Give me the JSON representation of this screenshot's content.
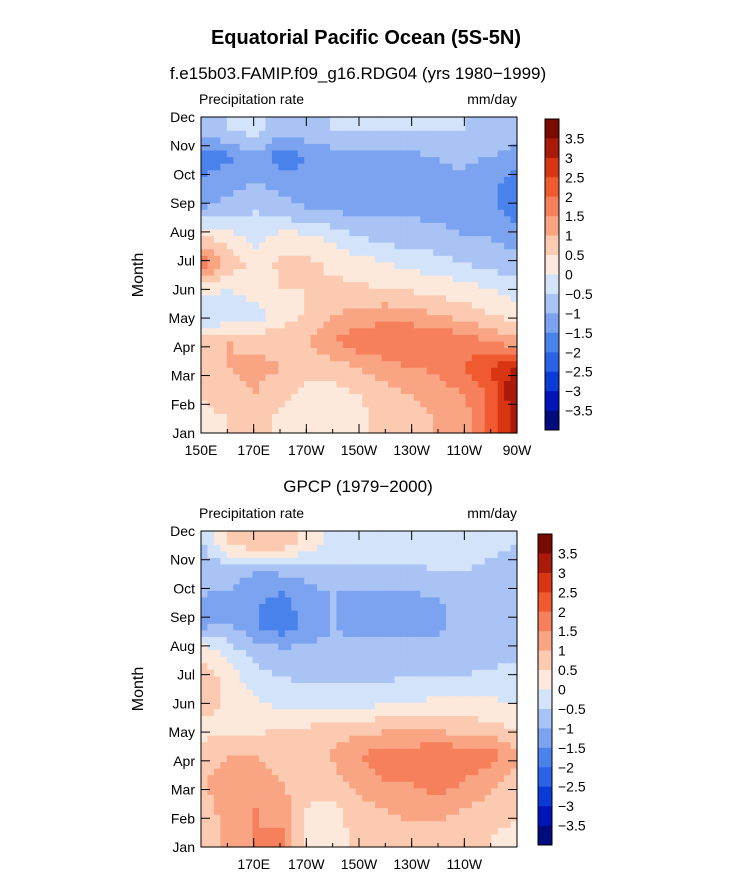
{
  "figure": {
    "title": "Equatorial Pacific Ocean (5S-5N)"
  },
  "chart_data": [
    {
      "type": "heatmap",
      "title": "f.e15b03.FAMIP.f09_g16.RDG04 (yrs 1980−1999)",
      "left_label": "Precipitation rate",
      "right_label": "mm/day",
      "ylabel": "Month",
      "x_ticks": [
        "150E",
        "170E",
        "170W",
        "150W",
        "130W",
        "110W",
        "90W"
      ],
      "y_ticks": [
        "Jan",
        "Feb",
        "Mar",
        "Apr",
        "May",
        "Jun",
        "Jul",
        "Aug",
        "Sep",
        "Oct",
        "Nov",
        "Dec"
      ],
      "x_range": [
        150,
        270
      ],
      "colorbar_labels": [
        "3.5",
        "3",
        "2.5",
        "2",
        "1.5",
        "1",
        "0.5",
        "0",
        "−0.5",
        "−1",
        "−1.5",
        "−2",
        "−2.5",
        "−3",
        "−3.5"
      ],
      "grid_values": [
        [
          0.3,
          0.5,
          0.6,
          0.4,
          0.3,
          0.2,
          0.4,
          0.6,
          0.8,
          1.0,
          1.2,
          2.0,
          3.0
        ],
        [
          0.6,
          0.8,
          1.0,
          0.6,
          0.3,
          0.3,
          0.5,
          0.8,
          1.0,
          1.2,
          1.5,
          2.0,
          3.5
        ],
        [
          0.8,
          1.0,
          1.2,
          1.0,
          0.8,
          0.7,
          1.0,
          1.3,
          1.5,
          1.6,
          2.0,
          2.5,
          3.0
        ],
        [
          0.8,
          1.0,
          0.8,
          0.8,
          1.0,
          1.5,
          1.8,
          2.0,
          2.0,
          2.0,
          1.8,
          1.5,
          1.2
        ],
        [
          -0.6,
          -0.5,
          -0.3,
          0.3,
          0.5,
          1.0,
          1.2,
          1.3,
          1.2,
          1.0,
          0.8,
          0.5,
          0.3
        ],
        [
          0.2,
          0.0,
          0.3,
          0.5,
          0.5,
          0.6,
          0.6,
          0.5,
          0.4,
          0.3,
          0.2,
          0.0,
          -0.2
        ],
        [
          1.8,
          0.8,
          0.3,
          0.6,
          0.6,
          0.4,
          0.2,
          0.0,
          -0.2,
          -0.3,
          -0.5,
          -0.7,
          -0.8
        ],
        [
          0.5,
          0.2,
          -0.3,
          0.2,
          0.1,
          -0.2,
          -0.5,
          -0.7,
          -0.8,
          -0.9,
          -1.0,
          -1.0,
          -1.2
        ],
        [
          -1.0,
          -0.8,
          -0.5,
          -0.8,
          -1.0,
          -1.1,
          -1.1,
          -1.1,
          -1.1,
          -1.1,
          -1.1,
          -1.2,
          -1.8
        ],
        [
          -1.4,
          -1.2,
          -1.0,
          -1.2,
          -1.3,
          -1.2,
          -1.2,
          -1.1,
          -1.1,
          -1.1,
          -1.1,
          -1.3,
          -1.8
        ],
        [
          -1.8,
          -1.6,
          -1.1,
          -1.9,
          -1.5,
          -1.3,
          -1.2,
          -1.1,
          -1.1,
          -1.0,
          -0.9,
          -1.0,
          -1.2
        ],
        [
          -0.7,
          -0.5,
          -0.3,
          -0.8,
          -0.6,
          -0.5,
          -0.5,
          -0.5,
          -0.5,
          -0.5,
          -0.5,
          -0.6,
          -0.7
        ]
      ]
    },
    {
      "type": "heatmap",
      "title": "GPCP (1979−2000)",
      "left_label": "Precipitation rate",
      "right_label": "mm/day",
      "ylabel": "Month",
      "x_ticks": [
        "170E",
        "170W",
        "150W",
        "130W",
        "110W"
      ],
      "y_ticks": [
        "Jan",
        "Feb",
        "Mar",
        "Apr",
        "May",
        "Jun",
        "Jul",
        "Aug",
        "Sep",
        "Oct",
        "Nov",
        "Dec"
      ],
      "x_range": [
        150,
        270
      ],
      "colorbar_labels": [
        "3.5",
        "3",
        "2.5",
        "2",
        "1.5",
        "1",
        "0.5",
        "0",
        "−0.5",
        "−1",
        "−1.5",
        "−2",
        "−2.5",
        "−3",
        "−3.5"
      ],
      "grid_values": [
        [
          0.5,
          1.2,
          1.5,
          1.6,
          0.3,
          0.3,
          0.6,
          0.7,
          0.8,
          0.8,
          0.7,
          0.5,
          0.4
        ],
        [
          0.8,
          1.3,
          1.5,
          1.3,
          0.5,
          0.4,
          0.8,
          1.0,
          1.2,
          1.2,
          1.0,
          0.8,
          0.6
        ],
        [
          1.0,
          1.2,
          1.3,
          1.0,
          0.6,
          0.8,
          1.2,
          1.5,
          1.5,
          1.8,
          1.5,
          1.2,
          0.8
        ],
        [
          0.8,
          1.0,
          1.0,
          0.8,
          0.8,
          1.1,
          1.5,
          1.8,
          1.8,
          2.0,
          1.8,
          1.8,
          1.2
        ],
        [
          0.3,
          0.4,
          0.4,
          0.5,
          0.6,
          0.7,
          0.8,
          0.9,
          0.9,
          0.9,
          0.8,
          0.7,
          0.5
        ],
        [
          0.8,
          0.3,
          0.1,
          -0.2,
          -0.3,
          -0.3,
          -0.2,
          -0.1,
          0.0,
          0.1,
          0.2,
          0.1,
          0.0
        ],
        [
          0.8,
          0.2,
          -0.3,
          -0.5,
          -0.6,
          -0.6,
          -0.6,
          -0.6,
          -0.5,
          -0.5,
          -0.5,
          -0.4,
          -0.4
        ],
        [
          0.3,
          -0.3,
          -0.8,
          -0.9,
          -0.9,
          -0.9,
          -0.8,
          -0.8,
          -0.8,
          -0.8,
          -0.7,
          -0.7,
          -0.6
        ],
        [
          -1.2,
          -1.0,
          -1.5,
          -1.9,
          -1.3,
          -1.0,
          -1.2,
          -1.3,
          -1.3,
          -1.2,
          -0.8,
          -1.0,
          -1.0
        ],
        [
          -1.0,
          -1.1,
          -1.4,
          -1.6,
          -1.2,
          -1.0,
          -1.2,
          -1.2,
          -1.1,
          -1.0,
          -0.8,
          -1.0,
          -1.0
        ],
        [
          -0.9,
          -0.8,
          -1.0,
          -0.9,
          -0.8,
          -0.7,
          -0.6,
          -0.6,
          -0.6,
          -0.5,
          -0.5,
          -0.6,
          -0.7
        ],
        [
          -0.5,
          0.5,
          0.8,
          0.8,
          0.3,
          -0.1,
          -0.3,
          -0.3,
          -0.3,
          -0.3,
          -0.3,
          -0.4,
          -0.5
        ]
      ]
    }
  ],
  "palette": [
    "#000C7D",
    "#0014B8",
    "#0A3BD7",
    "#2A62E8",
    "#4A82EC",
    "#7BA3F0",
    "#A9C3F5",
    "#D3E3FA",
    "#FDE9DB",
    "#FCCAB0",
    "#F9A583",
    "#F5805B",
    "#F05A30",
    "#D83612",
    "#A91A0A",
    "#780A00"
  ],
  "levels": [
    -3.5,
    -3,
    -2.5,
    -2,
    -1.5,
    -1,
    -0.5,
    0,
    0.5,
    1,
    1.5,
    2,
    2.5,
    3,
    3.5
  ]
}
